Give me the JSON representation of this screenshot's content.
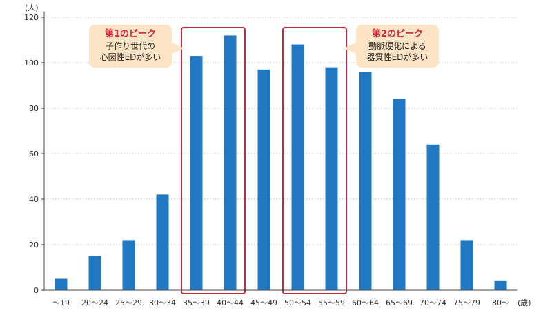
{
  "chart_data": {
    "type": "bar",
    "y_unit": "(人)",
    "x_unit": "(歳)",
    "categories": [
      "～19",
      "20～24",
      "25～29",
      "30～34",
      "35～39",
      "40～44",
      "45～49",
      "50～54",
      "55～59",
      "60～64",
      "65～69",
      "70～74",
      "75～79",
      "80～"
    ],
    "values": [
      5,
      15,
      22,
      42,
      103,
      112,
      97,
      108,
      98,
      96,
      84,
      64,
      22,
      4
    ],
    "ylim": [
      0,
      120
    ],
    "yticks": [
      0,
      20,
      40,
      60,
      80,
      100,
      120
    ],
    "grid": true,
    "title": "",
    "xlabel": "",
    "ylabel": "",
    "annotations": [
      {
        "title": "第1のピーク",
        "lines": [
          "子作り世代の",
          "心因性EDが多い"
        ],
        "categories": [
          "35～39",
          "40～44"
        ]
      },
      {
        "title": "第2のピーク",
        "lines": [
          "動脈硬化による",
          "器質性EDが多い"
        ],
        "categories": [
          "50～54",
          "55～59"
        ]
      }
    ]
  },
  "colors": {
    "bar": "#1f78c1",
    "highlight_box": "#c8283a",
    "callout_bg": "#fde4c4",
    "callout_title": "#d8283a",
    "grid": "#bdbdbd",
    "axis": "#444444"
  }
}
